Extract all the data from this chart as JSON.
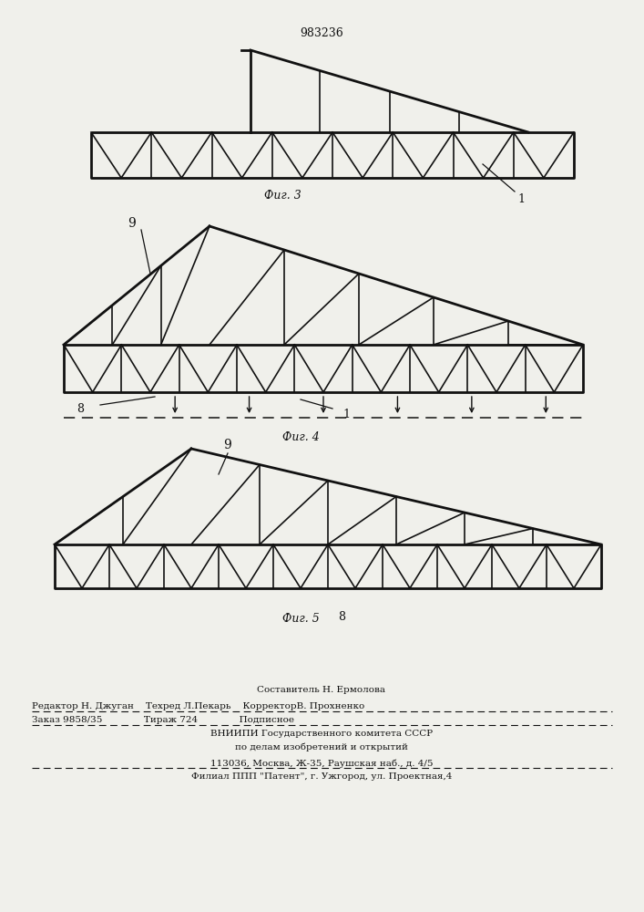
{
  "bg_color": "#f0f0eb",
  "line_color": "#111111",
  "lw_thin": 1.2,
  "lw_thick": 2.0,
  "patent_number": "983236",
  "fig3_label": "Фиг. 3",
  "fig4_label": "Фиг. 4",
  "fig5_label": "Фиг. 5",
  "label_1": "1",
  "label_8": "8",
  "label_9": "9",
  "footer_lines": [
    "Составитель Н. Ермолова",
    "Редактор Н. Джуган    Техред Л.Пекарь    КорректорВ. Прохненко",
    "Заказ 9858/35              Тираж 724              Подписное",
    "ВНИИПИ Государственного комитета СССР",
    "по делам изобретений и открытий",
    "113036, Москва, Ж-35, Раушская наб., д. 4/5",
    "Филиал ППП \"Патент\", г. Ужгород, ул. Проектная,4"
  ]
}
